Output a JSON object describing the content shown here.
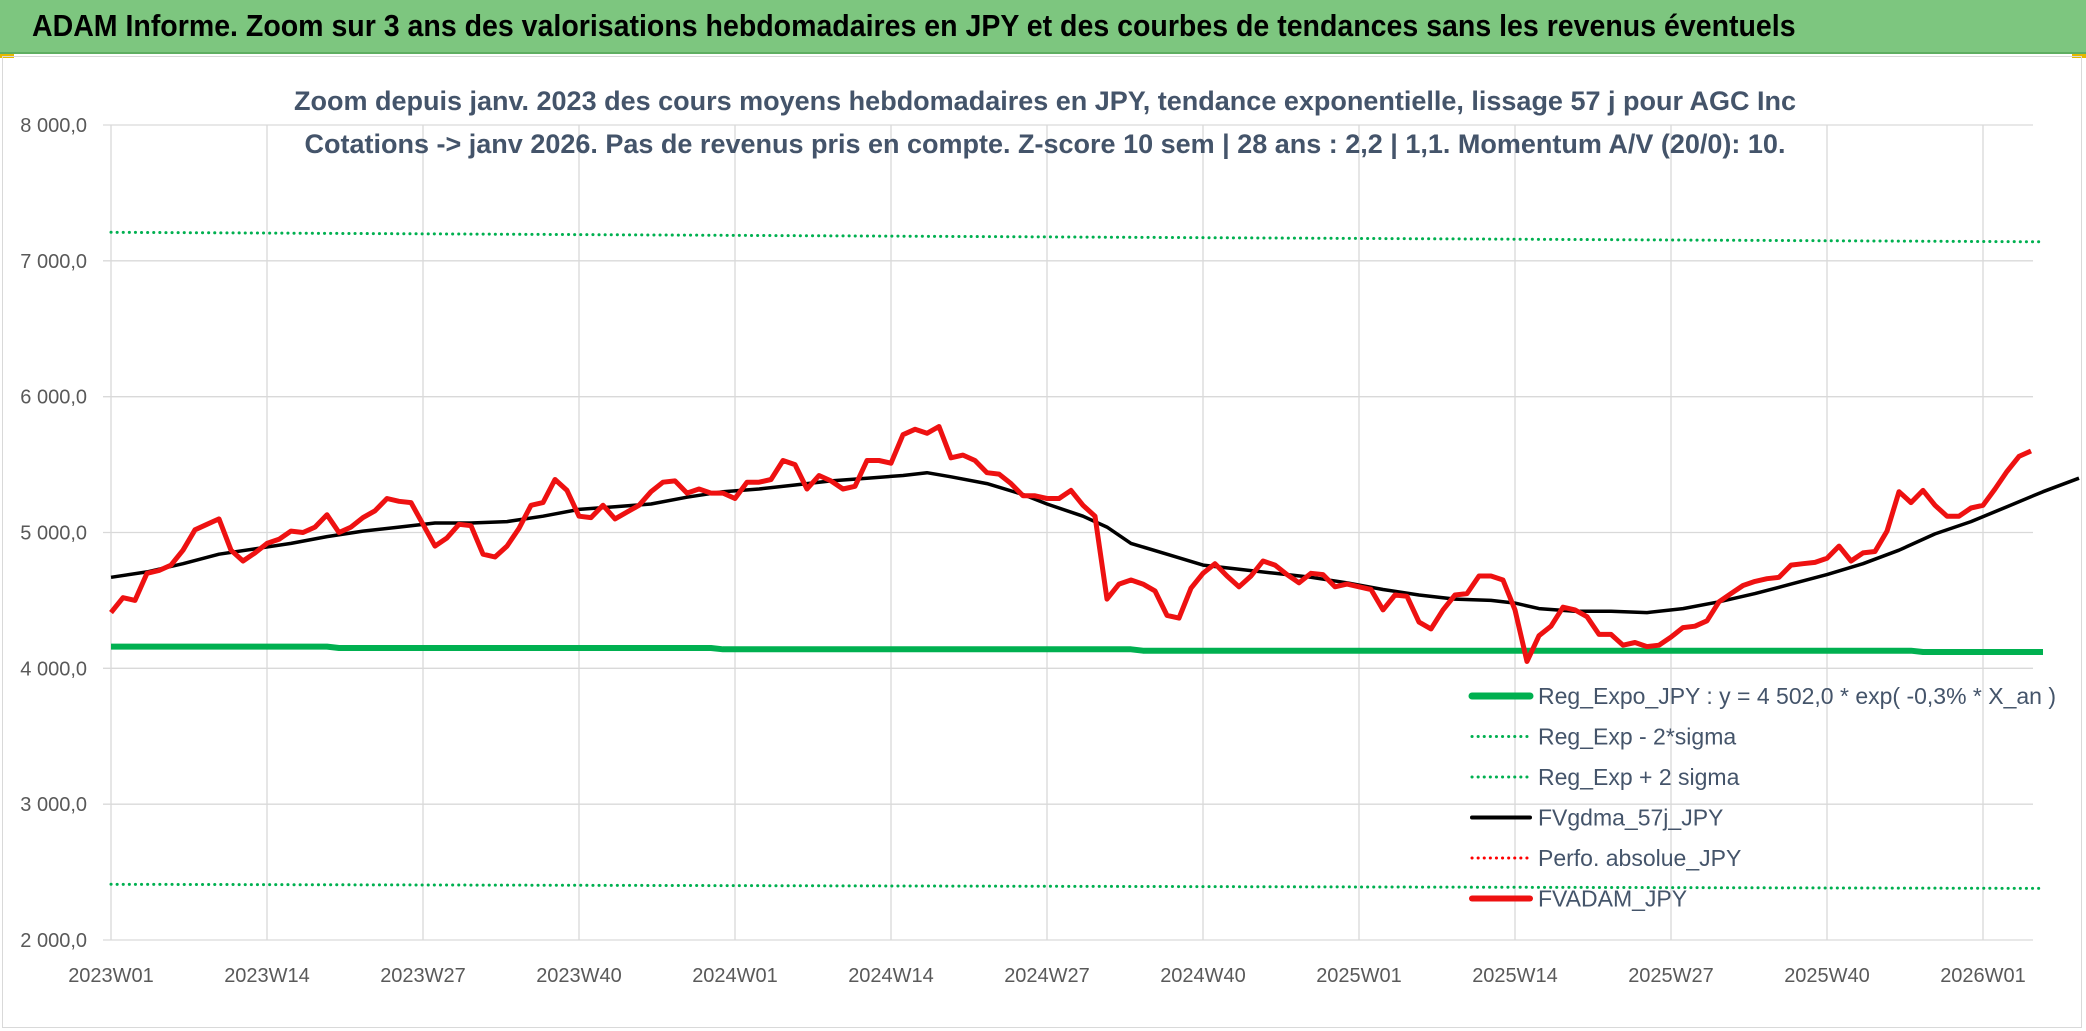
{
  "banner": {
    "title": "ADAM Informe. Zoom sur 3 ans des valorisations hebdomadaires en JPY et des courbes de tendances sans les revenus éventuels"
  },
  "chart_data": {
    "type": "line",
    "title_line1": "Zoom depuis janv. 2023 des cours moyens hebdomadaires en JPY, tendance exponentielle, lissage 57 j pour AGC Inc",
    "title_line2": "Cotations -> janv 2026. Pas de revenus pris en compte. Z-score 10 sem | 28 ans : 2,2 | 1,1. Momentum A/V (20/0): 10.",
    "ylim": [
      2000,
      8000
    ],
    "grid": true,
    "legend_position": "bottom-right",
    "y_ticks": [
      "8 000,0",
      "7 000,0",
      "6 000,0",
      "5 000,0",
      "4 000,0",
      "3 000,0",
      "2 000,0"
    ],
    "y_tick_values": [
      8000,
      7000,
      6000,
      5000,
      4000,
      3000,
      2000
    ],
    "x_ticks": [
      "2023W01",
      "2023W14",
      "2023W27",
      "2023W40",
      "2024W01",
      "2024W14",
      "2024W27",
      "2024W40",
      "2025W01",
      "2025W14",
      "2025W27",
      "2025W40",
      "2026W01"
    ],
    "x_tick_index": [
      0,
      13,
      26,
      39,
      52,
      65,
      78,
      91,
      104,
      117,
      130,
      143,
      156
    ],
    "n_weeks": 162,
    "series": [
      {
        "name": "Reg_Expo_JPY : y = 4 502,0 * exp( -0,3% *  X_an )",
        "color": "#00b050",
        "style": "solid",
        "width": 6,
        "points": [
          [
            0,
            4160
          ],
          [
            18,
            4160
          ],
          [
            19,
            4150
          ],
          [
            50,
            4150
          ],
          [
            51,
            4140
          ],
          [
            85,
            4140
          ],
          [
            86,
            4130
          ],
          [
            150,
            4130
          ],
          [
            151,
            4120
          ],
          [
            161,
            4120
          ]
        ]
      },
      {
        "name": "Reg_Exp - 2*sigma",
        "color": "#00b050",
        "style": "dotted",
        "width": 3,
        "points": [
          [
            0,
            2410
          ],
          [
            161,
            2380
          ]
        ]
      },
      {
        "name": "Reg_Exp + 2 sigma",
        "color": "#00b050",
        "style": "dotted",
        "width": 3,
        "points": [
          [
            0,
            7210
          ],
          [
            161,
            7140
          ]
        ]
      },
      {
        "name": "FVgdma_57j_JPY",
        "color": "#000000",
        "style": "solid",
        "width": 3.5,
        "points": [
          [
            0,
            4670
          ],
          [
            3,
            4710
          ],
          [
            6,
            4770
          ],
          [
            9,
            4840
          ],
          [
            12,
            4880
          ],
          [
            15,
            4920
          ],
          [
            18,
            4970
          ],
          [
            21,
            5010
          ],
          [
            24,
            5040
          ],
          [
            27,
            5070
          ],
          [
            30,
            5070
          ],
          [
            33,
            5080
          ],
          [
            36,
            5120
          ],
          [
            39,
            5170
          ],
          [
            42,
            5190
          ],
          [
            45,
            5210
          ],
          [
            48,
            5260
          ],
          [
            51,
            5300
          ],
          [
            54,
            5320
          ],
          [
            57,
            5350
          ],
          [
            60,
            5380
          ],
          [
            63,
            5400
          ],
          [
            66,
            5420
          ],
          [
            68,
            5440
          ],
          [
            70,
            5410
          ],
          [
            73,
            5360
          ],
          [
            76,
            5280
          ],
          [
            78,
            5210
          ],
          [
            81,
            5120
          ],
          [
            83,
            5040
          ],
          [
            85,
            4920
          ],
          [
            88,
            4840
          ],
          [
            91,
            4760
          ],
          [
            94,
            4730
          ],
          [
            97,
            4700
          ],
          [
            100,
            4670
          ],
          [
            103,
            4630
          ],
          [
            106,
            4580
          ],
          [
            109,
            4540
          ],
          [
            112,
            4510
          ],
          [
            115,
            4500
          ],
          [
            117,
            4480
          ],
          [
            119,
            4440
          ],
          [
            122,
            4420
          ],
          [
            125,
            4420
          ],
          [
            128,
            4410
          ],
          [
            131,
            4440
          ],
          [
            134,
            4490
          ],
          [
            137,
            4550
          ],
          [
            140,
            4620
          ],
          [
            143,
            4690
          ],
          [
            146,
            4770
          ],
          [
            149,
            4870
          ],
          [
            152,
            4990
          ],
          [
            155,
            5080
          ],
          [
            158,
            5190
          ],
          [
            161,
            5300
          ],
          [
            164,
            5400
          ]
        ]
      },
      {
        "name": "Perfo. absolue_JPY",
        "color": "#ff0000",
        "style": "dotted",
        "width": 3,
        "points": []
      },
      {
        "name": "FVADAM_JPY",
        "color": "#ee1111",
        "style": "solid",
        "width": 5,
        "points": [
          [
            0,
            4410
          ],
          [
            1,
            4520
          ],
          [
            2,
            4500
          ],
          [
            3,
            4700
          ],
          [
            4,
            4720
          ],
          [
            5,
            4760
          ],
          [
            6,
            4870
          ],
          [
            7,
            5020
          ],
          [
            8,
            5060
          ],
          [
            9,
            5100
          ],
          [
            10,
            4870
          ],
          [
            11,
            4790
          ],
          [
            12,
            4850
          ],
          [
            13,
            4920
          ],
          [
            14,
            4950
          ],
          [
            15,
            5010
          ],
          [
            16,
            5000
          ],
          [
            17,
            5040
          ],
          [
            18,
            5130
          ],
          [
            19,
            5000
          ],
          [
            20,
            5040
          ],
          [
            21,
            5110
          ],
          [
            22,
            5160
          ],
          [
            23,
            5250
          ],
          [
            24,
            5230
          ],
          [
            25,
            5220
          ],
          [
            26,
            5060
          ],
          [
            27,
            4900
          ],
          [
            28,
            4960
          ],
          [
            29,
            5060
          ],
          [
            30,
            5050
          ],
          [
            31,
            4840
          ],
          [
            32,
            4820
          ],
          [
            33,
            4900
          ],
          [
            34,
            5030
          ],
          [
            35,
            5200
          ],
          [
            36,
            5220
          ],
          [
            37,
            5390
          ],
          [
            38,
            5310
          ],
          [
            39,
            5120
          ],
          [
            40,
            5110
          ],
          [
            41,
            5200
          ],
          [
            42,
            5100
          ],
          [
            43,
            5150
          ],
          [
            44,
            5200
          ],
          [
            45,
            5300
          ],
          [
            46,
            5370
          ],
          [
            47,
            5380
          ],
          [
            48,
            5290
          ],
          [
            49,
            5320
          ],
          [
            50,
            5290
          ],
          [
            51,
            5290
          ],
          [
            52,
            5250
          ],
          [
            53,
            5370
          ],
          [
            54,
            5370
          ],
          [
            55,
            5390
          ],
          [
            56,
            5530
          ],
          [
            57,
            5500
          ],
          [
            58,
            5320
          ],
          [
            59,
            5420
          ],
          [
            60,
            5380
          ],
          [
            61,
            5320
          ],
          [
            62,
            5340
          ],
          [
            63,
            5530
          ],
          [
            64,
            5530
          ],
          [
            65,
            5510
          ],
          [
            66,
            5720
          ],
          [
            67,
            5760
          ],
          [
            68,
            5730
          ],
          [
            69,
            5780
          ],
          [
            70,
            5550
          ],
          [
            71,
            5570
          ],
          [
            72,
            5530
          ],
          [
            73,
            5440
          ],
          [
            74,
            5430
          ],
          [
            75,
            5360
          ],
          [
            76,
            5270
          ],
          [
            77,
            5270
          ],
          [
            78,
            5250
          ],
          [
            79,
            5250
          ],
          [
            80,
            5310
          ],
          [
            81,
            5200
          ],
          [
            82,
            5120
          ],
          [
            83,
            4510
          ],
          [
            84,
            4620
          ],
          [
            85,
            4650
          ],
          [
            86,
            4620
          ],
          [
            87,
            4570
          ],
          [
            88,
            4390
          ],
          [
            89,
            4370
          ],
          [
            90,
            4590
          ],
          [
            91,
            4700
          ],
          [
            92,
            4770
          ],
          [
            93,
            4680
          ],
          [
            94,
            4600
          ],
          [
            95,
            4680
          ],
          [
            96,
            4790
          ],
          [
            97,
            4760
          ],
          [
            98,
            4690
          ],
          [
            99,
            4630
          ],
          [
            100,
            4700
          ],
          [
            101,
            4690
          ],
          [
            102,
            4600
          ],
          [
            103,
            4620
          ],
          [
            104,
            4600
          ],
          [
            105,
            4580
          ],
          [
            106,
            4430
          ],
          [
            107,
            4540
          ],
          [
            108,
            4530
          ],
          [
            109,
            4340
          ],
          [
            110,
            4290
          ],
          [
            111,
            4430
          ],
          [
            112,
            4540
          ],
          [
            113,
            4550
          ],
          [
            114,
            4680
          ],
          [
            115,
            4680
          ],
          [
            116,
            4650
          ],
          [
            117,
            4430
          ],
          [
            118,
            4050
          ],
          [
            119,
            4240
          ],
          [
            120,
            4310
          ],
          [
            121,
            4450
          ],
          [
            122,
            4430
          ],
          [
            123,
            4380
          ],
          [
            124,
            4250
          ],
          [
            125,
            4250
          ],
          [
            126,
            4170
          ],
          [
            127,
            4190
          ],
          [
            128,
            4160
          ],
          [
            129,
            4170
          ],
          [
            130,
            4230
          ],
          [
            131,
            4300
          ],
          [
            132,
            4310
          ],
          [
            133,
            4350
          ],
          [
            134,
            4490
          ],
          [
            135,
            4550
          ],
          [
            136,
            4610
          ],
          [
            137,
            4640
          ],
          [
            138,
            4660
          ],
          [
            139,
            4670
          ],
          [
            140,
            4760
          ],
          [
            141,
            4770
          ],
          [
            142,
            4780
          ],
          [
            143,
            4810
          ],
          [
            144,
            4900
          ],
          [
            145,
            4790
          ],
          [
            146,
            4850
          ],
          [
            147,
            4860
          ],
          [
            148,
            5010
          ],
          [
            149,
            5300
          ],
          [
            150,
            5220
          ],
          [
            151,
            5310
          ],
          [
            152,
            5200
          ],
          [
            153,
            5120
          ],
          [
            154,
            5120
          ],
          [
            155,
            5180
          ],
          [
            156,
            5200
          ],
          [
            157,
            5320
          ],
          [
            158,
            5450
          ],
          [
            159,
            5560
          ],
          [
            160,
            5600
          ]
        ]
      }
    ]
  }
}
